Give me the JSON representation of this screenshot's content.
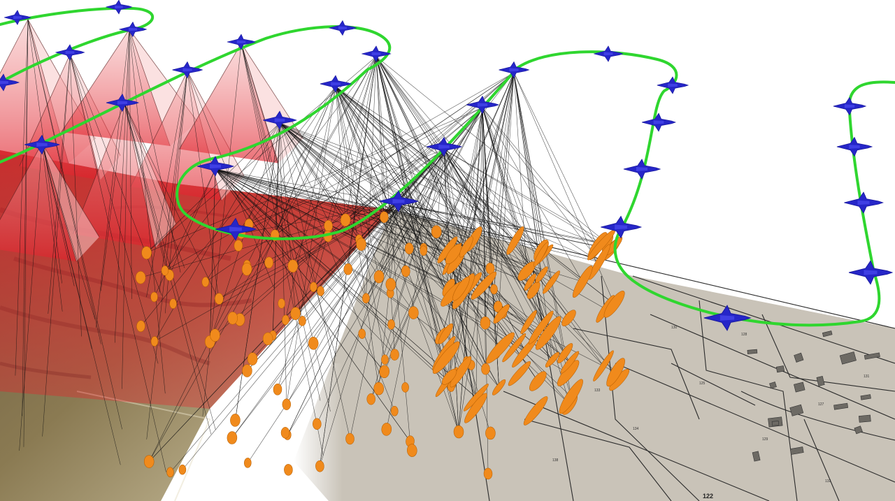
{
  "figure": {
    "colors": {
      "flight_path": "#2fd62f",
      "aircraft": "#2626c8",
      "footprint_cone": "#e8202a",
      "ellipse": "#f08a1c",
      "ray": "#111111",
      "cadastral_bg": "#c9c3b8",
      "aerial_dark": "#5a4a35",
      "aerial_light": "#c9b98f"
    },
    "icons": [
      "aircraft-icon"
    ],
    "cadastral_labels": [
      "122",
      "134",
      "125",
      "129",
      "127",
      "130",
      "131",
      "132",
      "133",
      "138",
      "128"
    ]
  }
}
